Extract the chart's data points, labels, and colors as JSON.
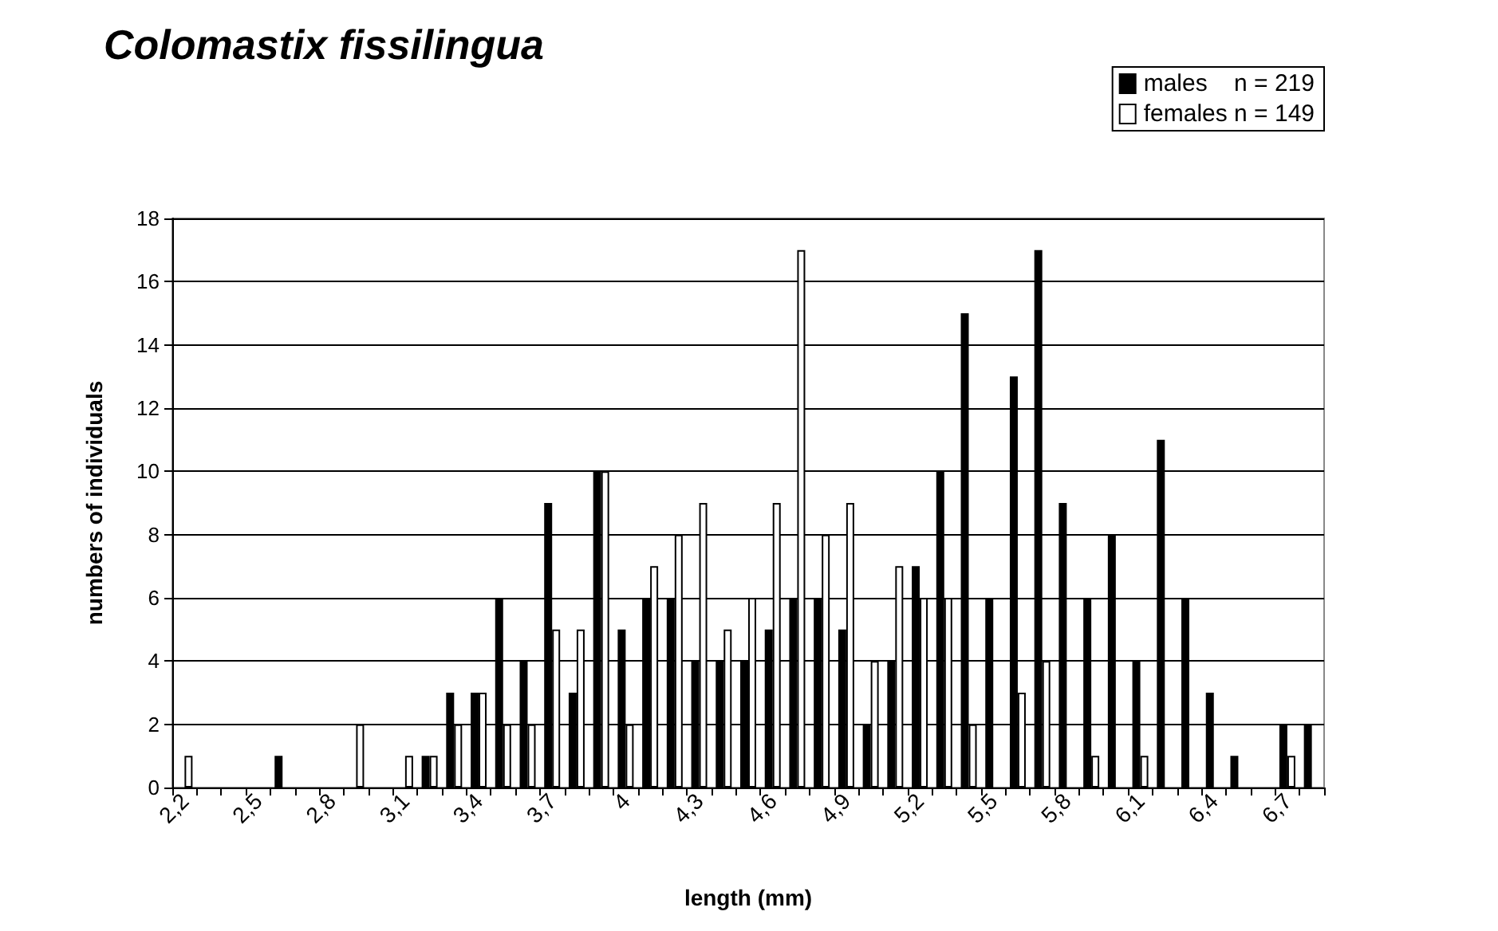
{
  "chart_data": {
    "type": "bar",
    "title": "Colomastix fissilingua",
    "xlabel": "length (mm)",
    "ylabel": "numbers of individuals",
    "categories": [
      "2,2",
      null,
      null,
      "2,5",
      null,
      null,
      "2,8",
      null,
      null,
      "3,1",
      null,
      null,
      "3,4",
      null,
      null,
      "3,7",
      null,
      null,
      "4",
      null,
      null,
      "4,3",
      null,
      null,
      "4,6",
      null,
      null,
      "4,9",
      null,
      null,
      "5,2",
      null,
      null,
      "5,5",
      null,
      null,
      "5,8",
      null,
      null,
      "6,1",
      null,
      null,
      "6,4",
      null,
      null,
      "6,7",
      null
    ],
    "series": [
      {
        "name": "males    n = 219",
        "color": "#000000",
        "values": [
          0,
          0,
          0,
          0,
          1,
          0,
          0,
          0,
          0,
          0,
          1,
          3,
          3,
          6,
          4,
          9,
          3,
          10,
          5,
          6,
          6,
          4,
          4,
          4,
          5,
          6,
          6,
          5,
          2,
          4,
          7,
          10,
          15,
          6,
          13,
          17,
          9,
          6,
          8,
          4,
          11,
          6,
          3,
          1,
          0,
          2,
          2
        ]
      },
      {
        "name": "females n = 149",
        "color": "#ffffff",
        "values": [
          1,
          0,
          0,
          0,
          0,
          0,
          0,
          2,
          0,
          1,
          1,
          2,
          3,
          2,
          2,
          5,
          5,
          10,
          2,
          7,
          8,
          9,
          5,
          6,
          9,
          17,
          8,
          9,
          4,
          7,
          6,
          6,
          2,
          0,
          3,
          4,
          0,
          1,
          0,
          1,
          0,
          0,
          0,
          0,
          0,
          1,
          0
        ]
      }
    ],
    "ylim": [
      0,
      18
    ],
    "yticks": [
      0,
      2,
      4,
      6,
      8,
      10,
      12,
      14,
      16,
      18
    ],
    "grid": "y",
    "legend": "top right"
  }
}
